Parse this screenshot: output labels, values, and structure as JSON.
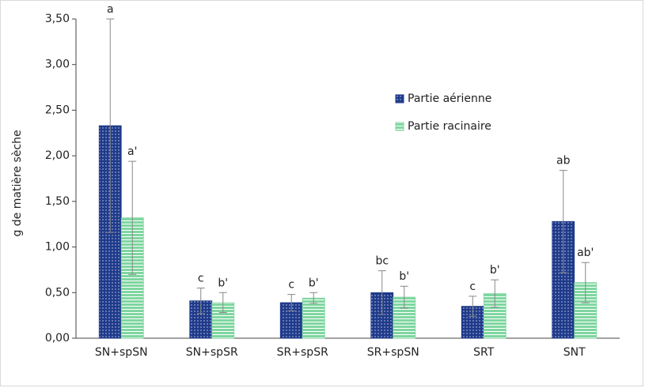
{
  "chart_data": {
    "type": "bar",
    "ylabel": "g de matière sèche",
    "categories": [
      "SN+spSN",
      "SN+spSR",
      "SR+spSR",
      "SR+spSN",
      "SRT",
      "SNT"
    ],
    "series": [
      {
        "name": "Partie aérienne",
        "color": "#1f3a8a",
        "values": [
          2.33,
          0.41,
          0.39,
          0.5,
          0.35,
          1.28
        ],
        "errors": [
          1.17,
          0.14,
          0.09,
          0.24,
          0.11,
          0.56
        ],
        "labels": [
          "a",
          "c",
          "c",
          "bc",
          "c",
          "ab"
        ]
      },
      {
        "name": "Partie racinaire",
        "color": "#7fd6a0",
        "values": [
          1.32,
          0.39,
          0.44,
          0.45,
          0.49,
          0.61
        ],
        "errors": [
          0.62,
          0.11,
          0.06,
          0.12,
          0.15,
          0.22
        ],
        "labels": [
          "a'",
          "b'",
          "b'",
          "b'",
          "b'",
          "ab'"
        ]
      }
    ],
    "ylim": [
      0,
      3.5
    ],
    "yticks": [
      {
        "value": 0,
        "label": "0,00"
      },
      {
        "value": 0.5,
        "label": "0,50"
      },
      {
        "value": 1,
        "label": "1,00"
      },
      {
        "value": 1.5,
        "label": "1,50"
      },
      {
        "value": 2,
        "label": "2,00"
      },
      {
        "value": 2.5,
        "label": "2,50"
      },
      {
        "value": 3,
        "label": "3,00"
      },
      {
        "value": 3.5,
        "label": "3,50"
      }
    ],
    "legend": "right"
  }
}
